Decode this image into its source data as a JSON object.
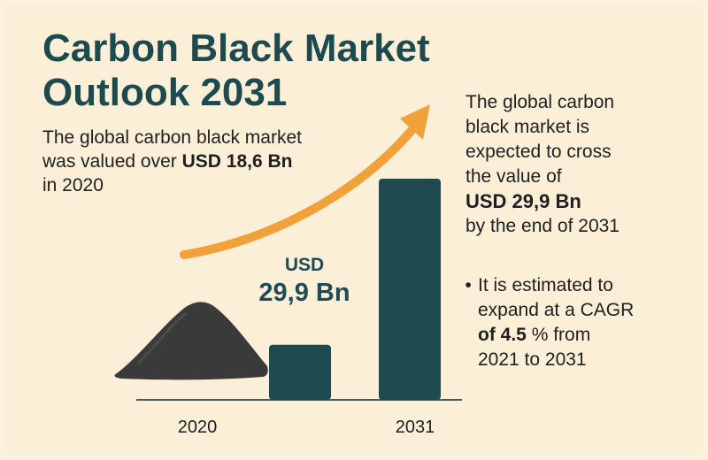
{
  "title_lines": [
    "Carbon Black Market",
    "Outlook 2031"
  ],
  "intro": {
    "line1": "The global carbon black market",
    "line2_prefix": "was valued over ",
    "line2_bold": "USD 18,6 Bn",
    "line3": "in 2020"
  },
  "right_text": {
    "lines": [
      "The global carbon",
      "black market is",
      "expected to cross",
      "the value of"
    ],
    "bold": "USD 29,9 Bn",
    "end": "by the end of 2031"
  },
  "bullet": {
    "symbol": "•",
    "line1": "It is estimated to",
    "line2": "expand at a CAGR",
    "line3_bold": "of 4.5",
    "line3_rest": " % from",
    "line4": "2021 to 2031"
  },
  "chart_data": {
    "type": "bar",
    "categories": [
      "2020",
      "2031"
    ],
    "values": [
      18.6,
      29.9
    ],
    "value_label_lines": [
      "USD",
      "29,9 Bn"
    ],
    "colors": {
      "bar": "#1f4a4f",
      "arrow": "#f0a13a",
      "pile": "#3a3a3a",
      "axis": "#4a5a5a"
    }
  }
}
